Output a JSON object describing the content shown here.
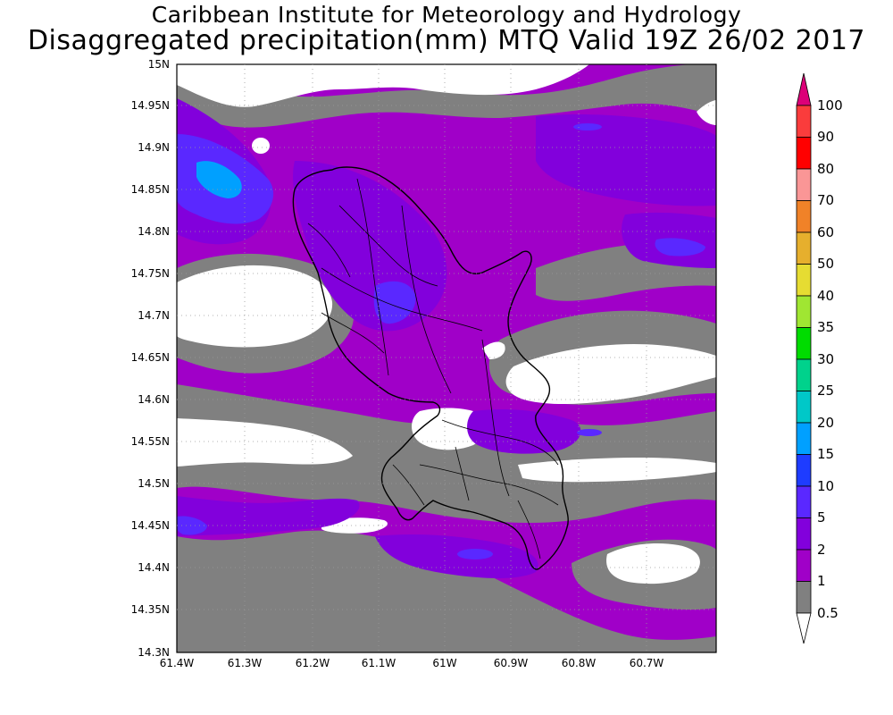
{
  "header": {
    "line1": "Caribbean Institute for Meteorology and Hydrology",
    "line2": "Disaggregated precipitation(mm) MTQ Valid 19Z 26/02 2017"
  },
  "axes": {
    "lat_labels": [
      "15N",
      "14.95N",
      "14.9N",
      "14.85N",
      "14.8N",
      "14.75N",
      "14.7N",
      "14.65N",
      "14.6N",
      "14.55N",
      "14.5N",
      "14.45N",
      "14.4N",
      "14.35N",
      "14.3N"
    ],
    "lon_labels": [
      "61.4W",
      "61.3W",
      "61.2W",
      "61.1W",
      "61W",
      "60.9W",
      "60.8W",
      "60.7W"
    ]
  },
  "legend": {
    "levels": [
      "0.5",
      "1",
      "2",
      "5",
      "10",
      "15",
      "20",
      "25",
      "30",
      "35",
      "40",
      "50",
      "60",
      "70",
      "80",
      "90",
      "100"
    ],
    "colors": [
      "#808080",
      "#a000c8",
      "#8200dc",
      "#5a28ff",
      "#1e3cff",
      "#00a0ff",
      "#00c8c8",
      "#00d28c",
      "#00dc00",
      "#a0e632",
      "#e6dc32",
      "#e6af2d",
      "#f08228",
      "#fa9696",
      "#ff0000",
      "#fa3c3c",
      "#dc0078"
    ]
  },
  "map": {
    "region": "Martinique (MTQ)",
    "field_colors": {
      "no_rain": "#ffffff",
      "lt_1": "#808080",
      "1_2": "#a000c8",
      "2_5": "#8200dc",
      "5_10": "#5a28ff",
      "10_15": "#1e3cff",
      "15_20": "#00a0ff"
    }
  }
}
